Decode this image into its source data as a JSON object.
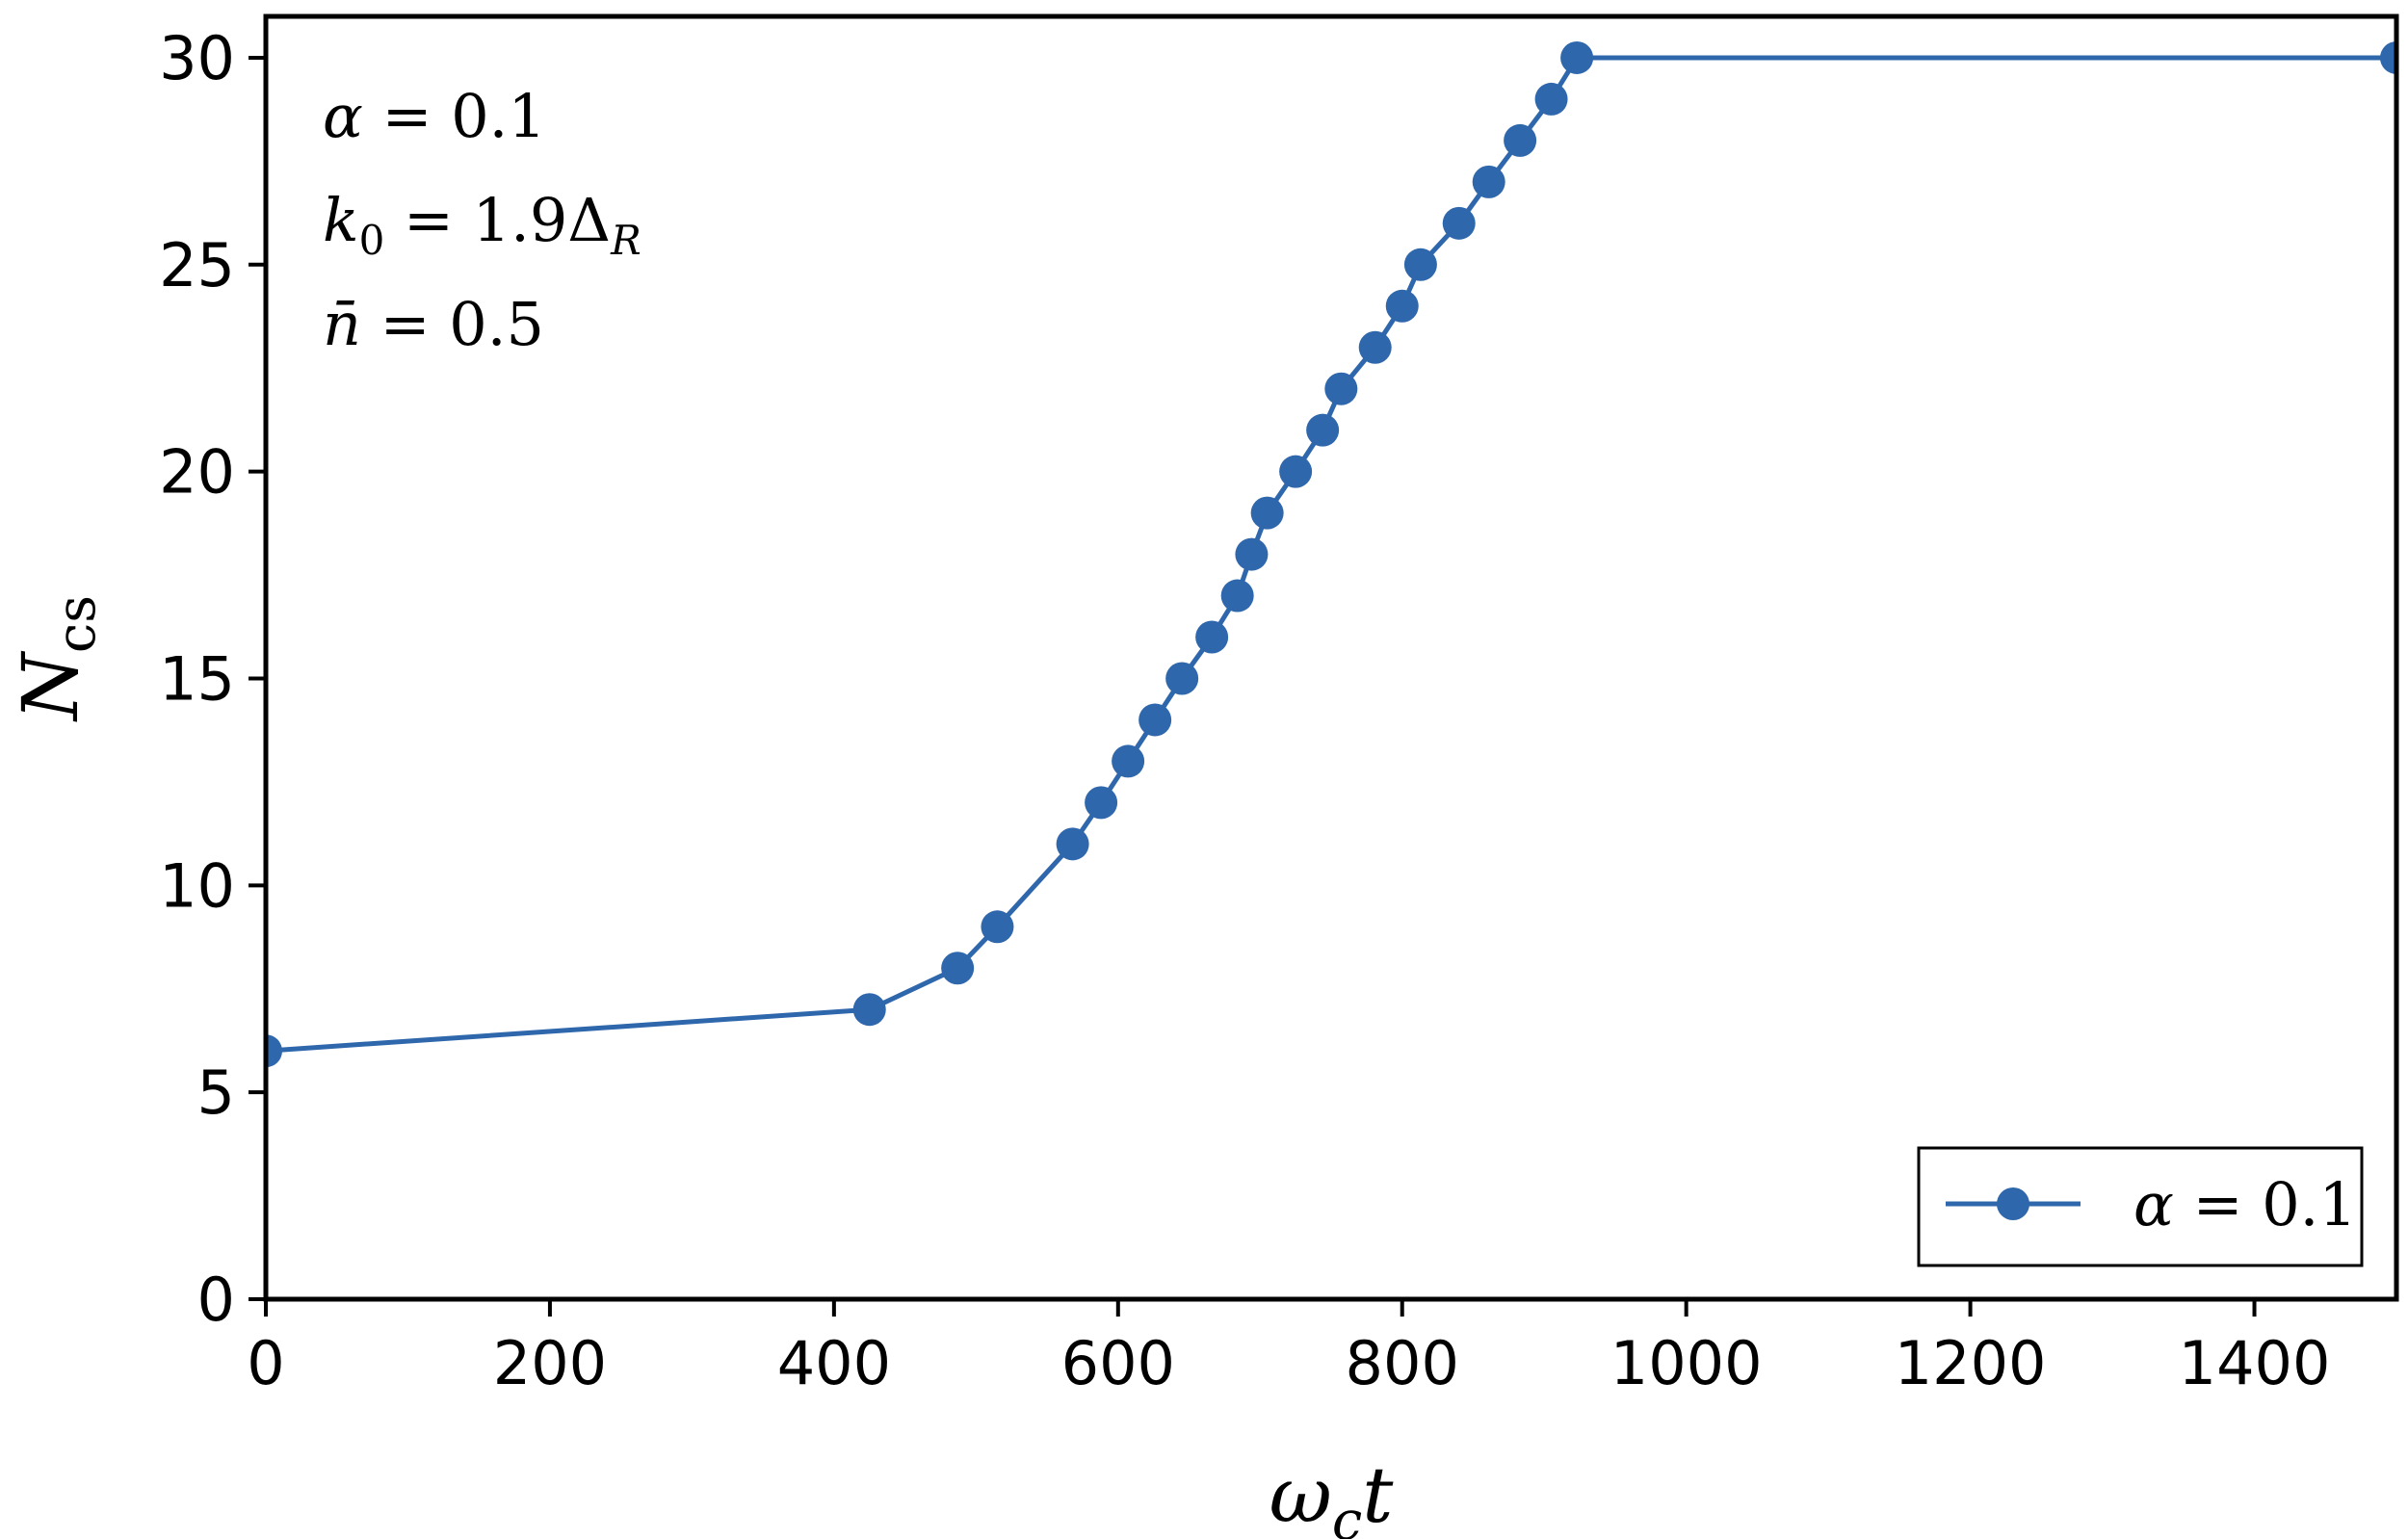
{
  "chart_data": {
    "type": "line",
    "xlabel": "ω_c t",
    "ylabel": "N_cs",
    "xlim": [
      0,
      1500
    ],
    "ylim": [
      0,
      31
    ],
    "xticks": [
      0,
      200,
      400,
      600,
      800,
      1000,
      1200,
      1400
    ],
    "yticks": [
      0,
      5,
      10,
      15,
      20,
      25,
      30
    ],
    "xtick_labels": [
      "0",
      "200",
      "400",
      "600",
      "800",
      "1000",
      "1200",
      "1400"
    ],
    "ytick_labels": [
      "0",
      "5",
      "10",
      "15",
      "20",
      "25",
      "30"
    ],
    "grid": false,
    "legend_position": "bottom-right",
    "color": "#2f67ac",
    "annotations": [
      "α = 0.1",
      "k₀ = 1.9Δ_R",
      "n̄ = 0.5"
    ],
    "series": [
      {
        "name": "α = 0.1",
        "x": [
          0,
          425,
          487,
          515,
          568,
          588,
          607,
          626,
          645,
          666,
          684,
          694,
          705,
          725,
          744,
          757,
          781,
          800,
          813,
          840,
          861,
          883,
          905,
          923,
          1500
        ],
        "y": [
          6,
          7,
          8,
          9,
          11,
          12,
          13,
          14,
          15,
          16,
          17,
          18,
          19,
          20,
          21,
          22,
          23,
          24,
          25,
          26,
          27,
          28,
          29,
          30,
          30
        ]
      }
    ]
  }
}
